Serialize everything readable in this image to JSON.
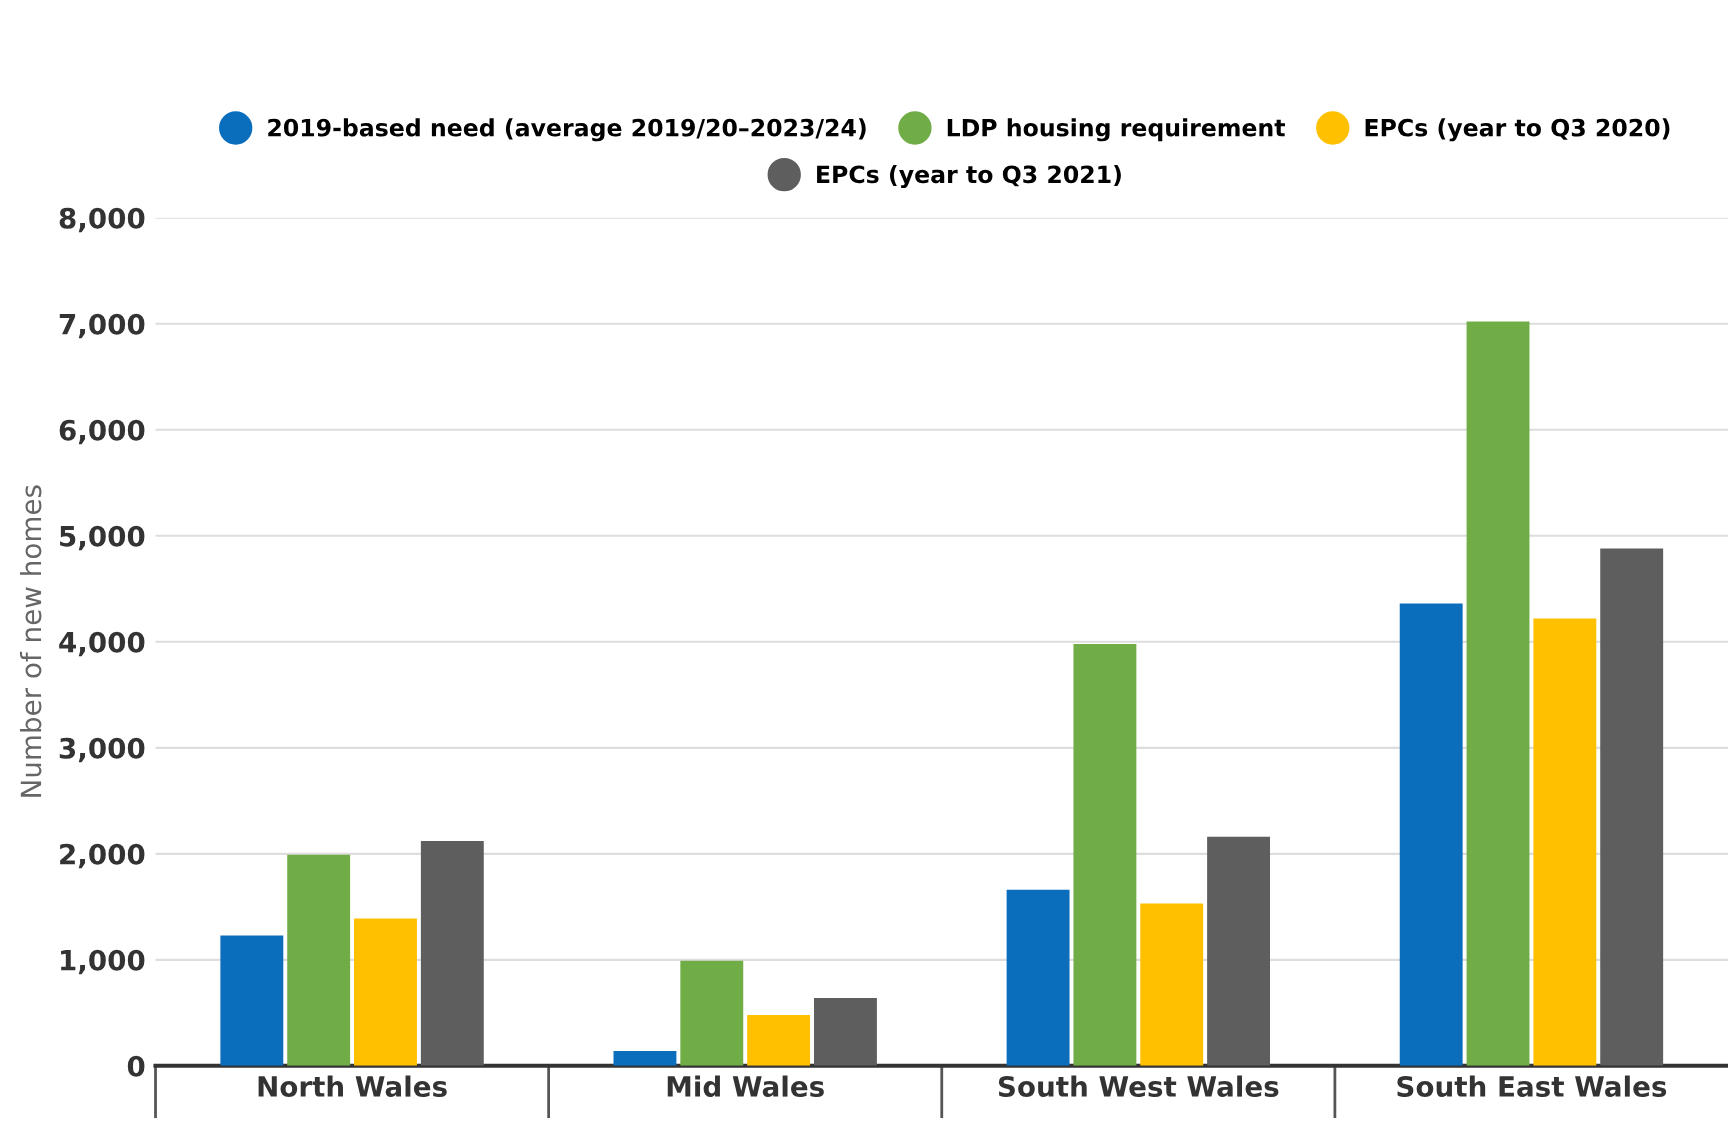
{
  "chart_data": {
    "type": "bar",
    "ylabel": "Number of new homes",
    "categories": [
      "North Wales",
      "Mid Wales",
      "South West Wales",
      "South East Wales"
    ],
    "series": [
      {
        "name": "2019-based need (average 2019/20–2023/24)",
        "color": "#0a6ebd",
        "values": [
          1230,
          140,
          1660,
          4360
        ]
      },
      {
        "name": "LDP housing requirement",
        "color": "#70ad47",
        "values": [
          1990,
          990,
          3980,
          7020
        ]
      },
      {
        "name": "EPCs (year to Q3 2020)",
        "color": "#ffc000",
        "values": [
          1390,
          480,
          1530,
          4220
        ]
      },
      {
        "name": "EPCs (year to Q3 2021)",
        "color": "#5e5e5e",
        "values": [
          2120,
          640,
          2160,
          4880
        ]
      }
    ],
    "ylim": [
      0,
      8000
    ],
    "yticks": [
      {
        "value": 0,
        "label": "0"
      },
      {
        "value": 1000,
        "label": "1,000"
      },
      {
        "value": 2000,
        "label": "2,000"
      },
      {
        "value": 3000,
        "label": "3,000"
      },
      {
        "value": 4000,
        "label": "4,000"
      },
      {
        "value": 5000,
        "label": "5,000"
      },
      {
        "value": 6000,
        "label": "6,000"
      },
      {
        "value": 7000,
        "label": "7,000"
      },
      {
        "value": 8000,
        "label": "8,000"
      }
    ],
    "grid": "y",
    "legend": "top"
  }
}
